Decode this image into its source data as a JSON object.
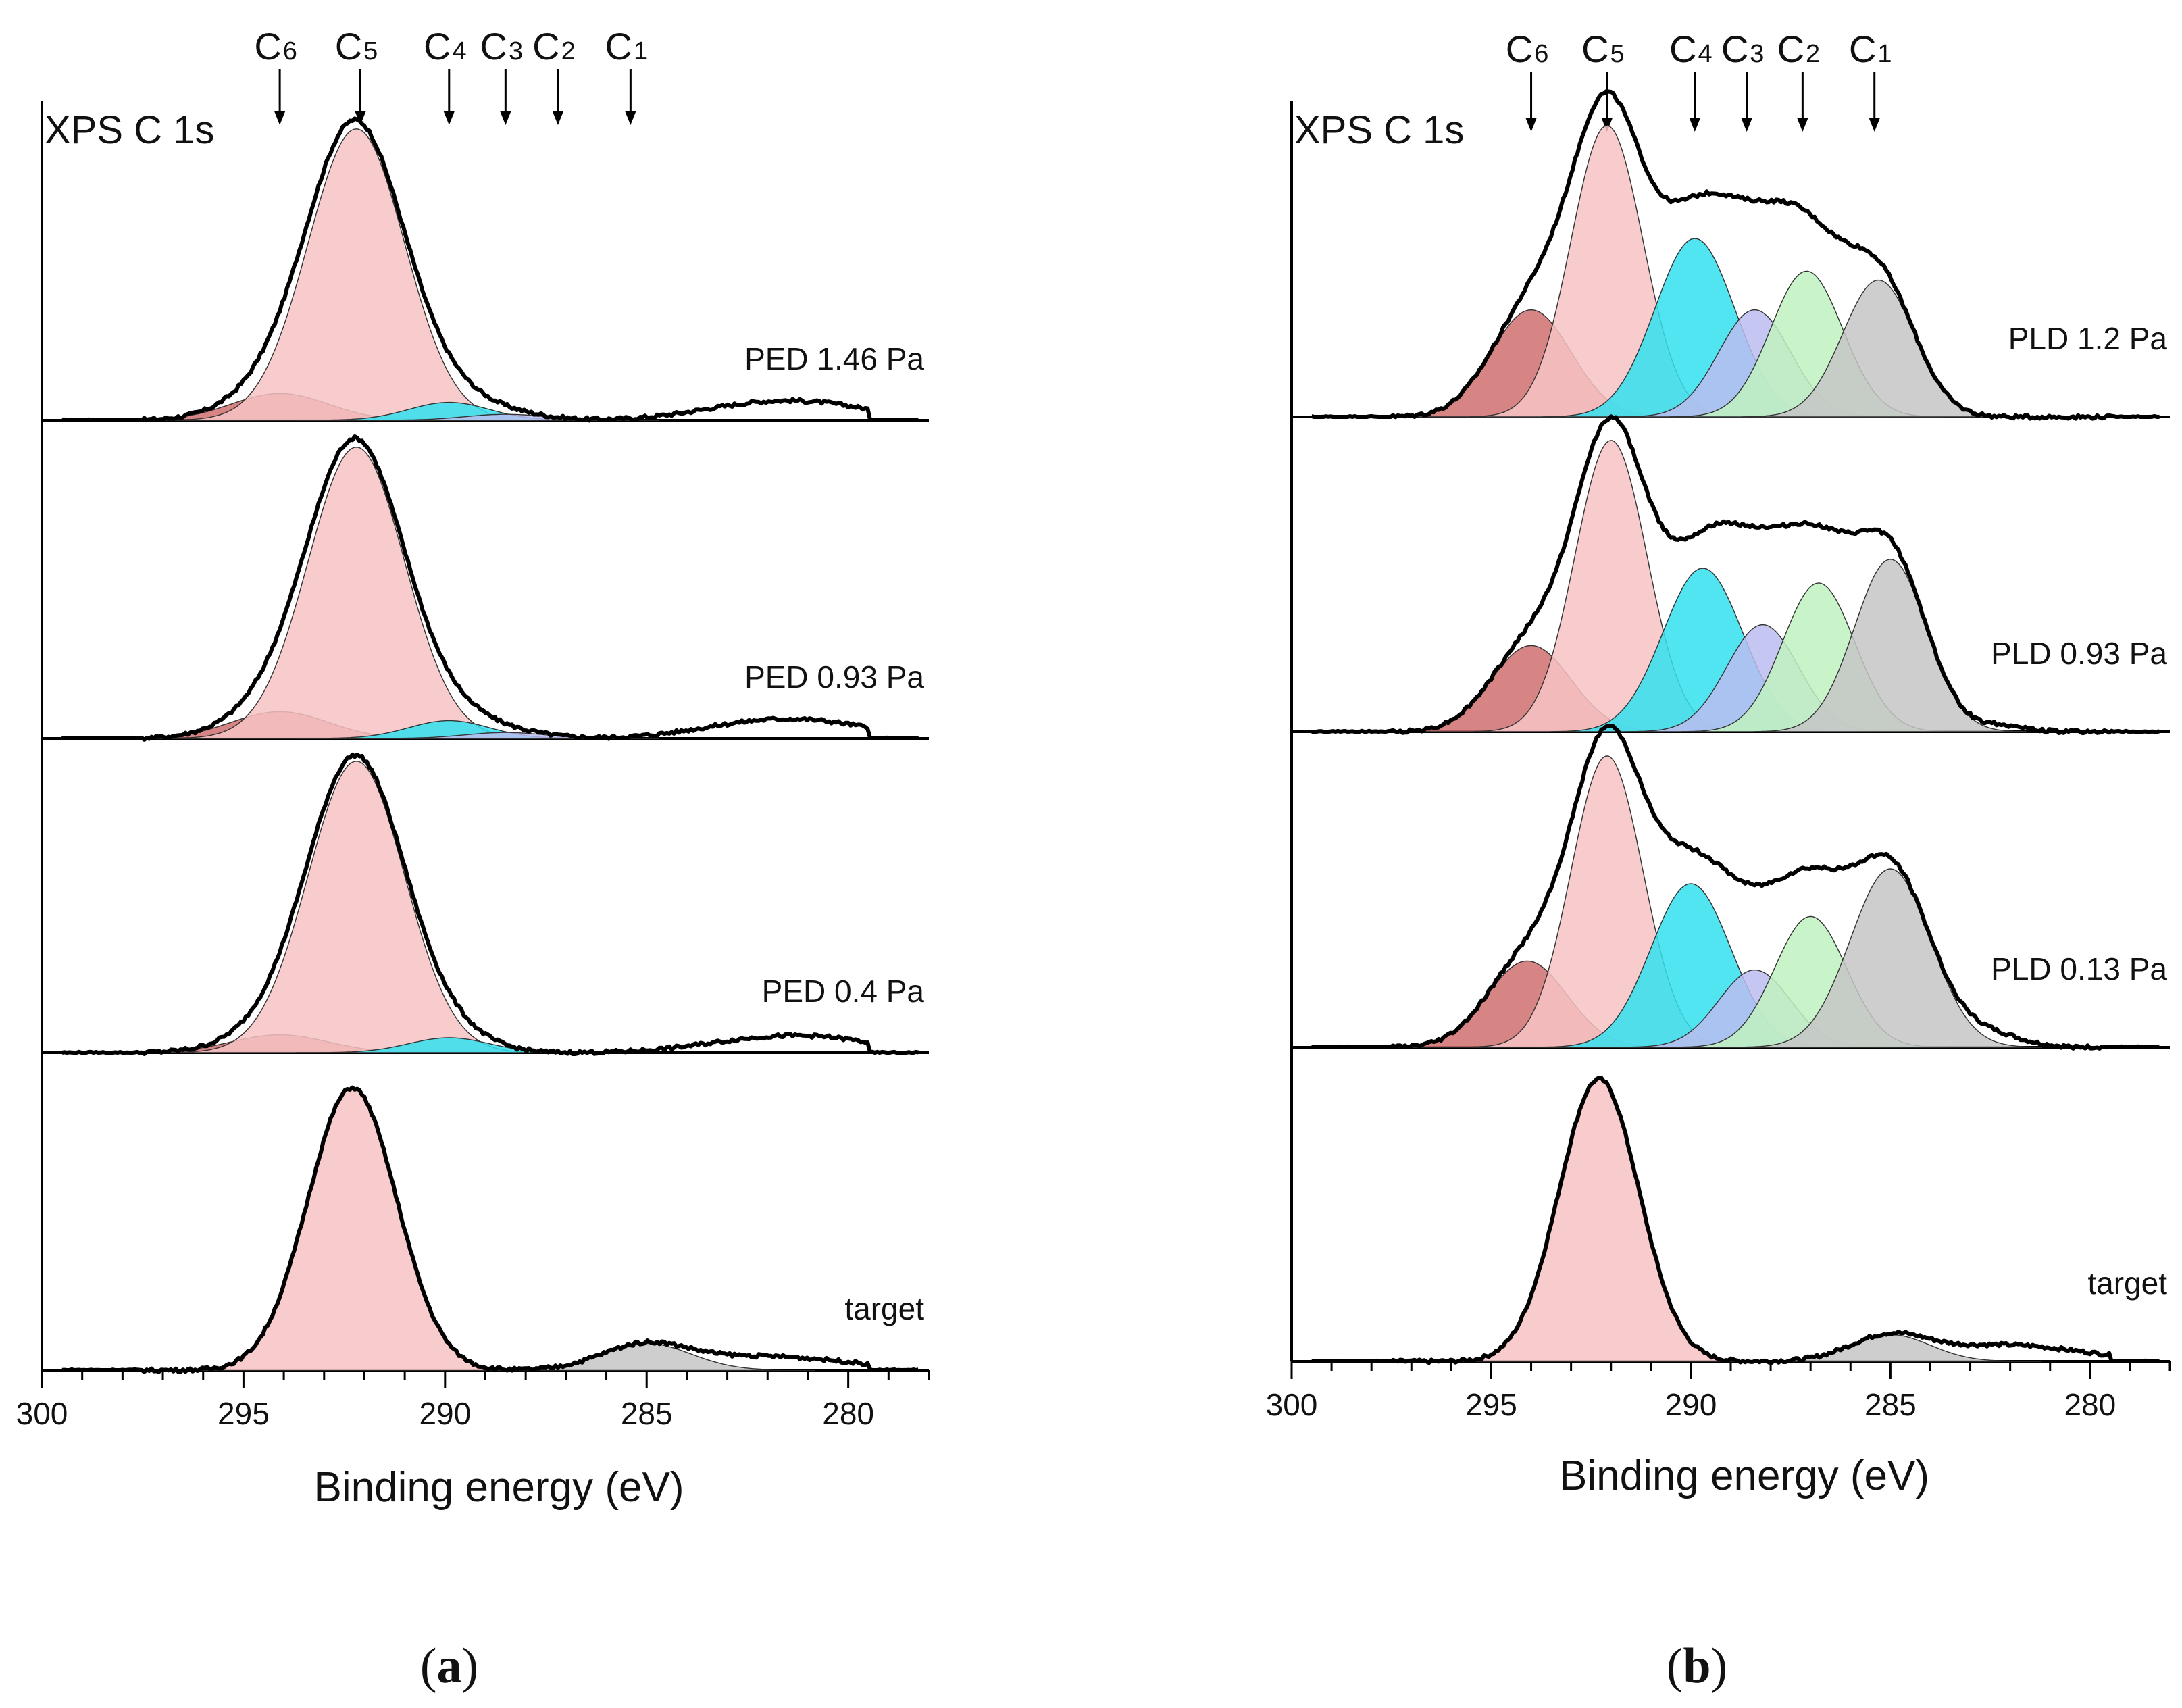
{
  "chart_data": [
    {
      "type": "line",
      "panel": "a",
      "panel_label": "a",
      "title": "XPS C 1s",
      "xlabel": "Binding energy (eV)",
      "ylabel": "",
      "xlim": [
        300,
        278
      ],
      "x_reversed": true,
      "x_ticks": [
        300,
        295,
        290,
        285,
        280
      ],
      "peak_markers": [
        {
          "name": "C",
          "sub": "6",
          "energy": 294.1
        },
        {
          "name": "C",
          "sub": "5",
          "energy": 292.1
        },
        {
          "name": "C",
          "sub": "4",
          "energy": 289.9
        },
        {
          "name": "C",
          "sub": "3",
          "energy": 288.5
        },
        {
          "name": "C",
          "sub": "2",
          "energy": 287.2
        },
        {
          "name": "C",
          "sub": "1",
          "energy": 285.4
        }
      ],
      "series": [
        {
          "name": "PED 1.46 Pa",
          "components": [
            {
              "peak": "C6",
              "center": 294.1,
              "height": 0.09,
              "width": 1.2,
              "color": "#d0706f"
            },
            {
              "peak": "C5",
              "center": 292.2,
              "height": 0.98,
              "width": 1.2,
              "color": "#f7c3c3"
            },
            {
              "peak": "C4",
              "center": 289.9,
              "height": 0.06,
              "width": 1.0,
              "color": "#33e0ee"
            },
            {
              "peak": "C3",
              "center": 288.5,
              "height": 0.02,
              "width": 1.0,
              "color": "#bbbdf0"
            }
          ],
          "tail": [
            {
              "center": 282.2,
              "height": 0.05,
              "width": 1.6
            },
            {
              "center": 280.3,
              "height": 0.03,
              "width": 1.4
            }
          ]
        },
        {
          "name": "PED 0.93 Pa",
          "components": [
            {
              "peak": "C6",
              "center": 294.1,
              "height": 0.09,
              "width": 1.2,
              "color": "#d0706f"
            },
            {
              "peak": "C5",
              "center": 292.2,
              "height": 0.98,
              "width": 1.2,
              "color": "#f7c3c3"
            },
            {
              "peak": "C4",
              "center": 289.9,
              "height": 0.06,
              "width": 1.0,
              "color": "#33e0ee"
            },
            {
              "peak": "C3",
              "center": 288.5,
              "height": 0.02,
              "width": 1.0,
              "color": "#bbbdf0"
            }
          ],
          "tail": [
            {
              "center": 282.2,
              "height": 0.05,
              "width": 1.6
            },
            {
              "center": 280.3,
              "height": 0.03,
              "width": 1.4
            }
          ]
        },
        {
          "name": "PED 0.4 Pa",
          "components": [
            {
              "peak": "C6",
              "center": 294.1,
              "height": 0.06,
              "width": 1.2,
              "color": "#d0706f"
            },
            {
              "peak": "C5",
              "center": 292.2,
              "height": 0.98,
              "width": 1.2,
              "color": "#f7c3c3"
            },
            {
              "peak": "C4",
              "center": 289.9,
              "height": 0.05,
              "width": 1.0,
              "color": "#33e0ee"
            }
          ],
          "tail": [
            {
              "center": 282.2,
              "height": 0.04,
              "width": 1.6
            },
            {
              "center": 280.3,
              "height": 0.03,
              "width": 1.4
            }
          ]
        },
        {
          "name": "target",
          "components": [
            {
              "peak": "C5",
              "center": 292.3,
              "height": 0.95,
              "width": 1.1,
              "color": "#f7c3c3"
            },
            {
              "peak": "C1",
              "center": 285.0,
              "height": 0.09,
              "width": 1.1,
              "color": "#c6c6c6"
            }
          ],
          "tail": [
            {
              "center": 282.3,
              "height": 0.04,
              "width": 1.3
            },
            {
              "center": 280.2,
              "height": 0.02,
              "width": 1.2
            }
          ]
        }
      ]
    },
    {
      "type": "line",
      "panel": "b",
      "panel_label": "b",
      "title": "XPS C 1s",
      "xlabel": "Binding energy (eV)",
      "ylabel": "",
      "xlim": [
        300,
        278
      ],
      "x_reversed": true,
      "x_ticks": [
        300,
        295,
        290,
        285,
        280
      ],
      "peak_markers": [
        {
          "name": "C",
          "sub": "6",
          "energy": 294.0
        },
        {
          "name": "C",
          "sub": "5",
          "energy": 292.1
        },
        {
          "name": "C",
          "sub": "4",
          "energy": 289.9
        },
        {
          "name": "C",
          "sub": "3",
          "energy": 288.6
        },
        {
          "name": "C",
          "sub": "2",
          "energy": 287.2
        },
        {
          "name": "C",
          "sub": "1",
          "energy": 285.4
        }
      ],
      "series": [
        {
          "name": "PLD 1.2 Pa",
          "components": [
            {
              "peak": "C6",
              "center": 294.0,
              "height": 0.36,
              "width": 1.0,
              "color": "#d0706f"
            },
            {
              "peak": "C5",
              "center": 292.1,
              "height": 0.98,
              "width": 0.9,
              "color": "#f7c3c3"
            },
            {
              "peak": "C4",
              "center": 289.9,
              "height": 0.6,
              "width": 1.0,
              "color": "#33e0ee"
            },
            {
              "peak": "C3",
              "center": 288.4,
              "height": 0.36,
              "width": 0.9,
              "color": "#bbbdf0"
            },
            {
              "peak": "C2",
              "center": 287.1,
              "height": 0.49,
              "width": 0.9,
              "color": "#bff2c0"
            },
            {
              "peak": "C1",
              "center": 285.3,
              "height": 0.46,
              "width": 0.9,
              "color": "#c6c6c6"
            }
          ],
          "tail": []
        },
        {
          "name": "PLD 0.93 Pa",
          "components": [
            {
              "peak": "C6",
              "center": 294.0,
              "height": 0.29,
              "width": 1.0,
              "color": "#d0706f"
            },
            {
              "peak": "C5",
              "center": 292.0,
              "height": 0.98,
              "width": 0.9,
              "color": "#f7c3c3"
            },
            {
              "peak": "C4",
              "center": 289.7,
              "height": 0.55,
              "width": 1.0,
              "color": "#33e0ee"
            },
            {
              "peak": "C3",
              "center": 288.2,
              "height": 0.36,
              "width": 0.9,
              "color": "#bbbdf0"
            },
            {
              "peak": "C2",
              "center": 286.8,
              "height": 0.5,
              "width": 0.9,
              "color": "#bff2c0"
            },
            {
              "peak": "C1",
              "center": 285.0,
              "height": 0.58,
              "width": 0.9,
              "color": "#c6c6c6"
            }
          ],
          "tail": [
            {
              "center": 282.2,
              "height": 0.02,
              "width": 0.6
            }
          ]
        },
        {
          "name": "PLD 0.13 Pa",
          "components": [
            {
              "peak": "C6",
              "center": 294.1,
              "height": 0.29,
              "width": 1.0,
              "color": "#d0706f"
            },
            {
              "peak": "C5",
              "center": 292.1,
              "height": 0.98,
              "width": 0.9,
              "color": "#f7c3c3"
            },
            {
              "peak": "C4",
              "center": 290.0,
              "height": 0.55,
              "width": 1.0,
              "color": "#33e0ee"
            },
            {
              "peak": "C3",
              "center": 288.4,
              "height": 0.26,
              "width": 0.9,
              "color": "#bbbdf0"
            },
            {
              "peak": "C2",
              "center": 287.0,
              "height": 0.44,
              "width": 0.9,
              "color": "#bff2c0"
            },
            {
              "peak": "C1",
              "center": 285.0,
              "height": 0.6,
              "width": 1.0,
              "color": "#c6c6c6"
            }
          ],
          "tail": [
            {
              "center": 282.5,
              "height": 0.04,
              "width": 0.8
            }
          ]
        },
        {
          "name": "target",
          "components": [
            {
              "peak": "C5",
              "center": 292.3,
              "height": 0.95,
              "width": 1.0,
              "color": "#f7c3c3"
            },
            {
              "peak": "C1",
              "center": 285.0,
              "height": 0.09,
              "width": 1.0,
              "color": "#c6c6c6"
            }
          ],
          "tail": [
            {
              "center": 282.3,
              "height": 0.05,
              "width": 1.3
            },
            {
              "center": 280.2,
              "height": 0.02,
              "width": 1.2
            }
          ]
        }
      ]
    }
  ]
}
